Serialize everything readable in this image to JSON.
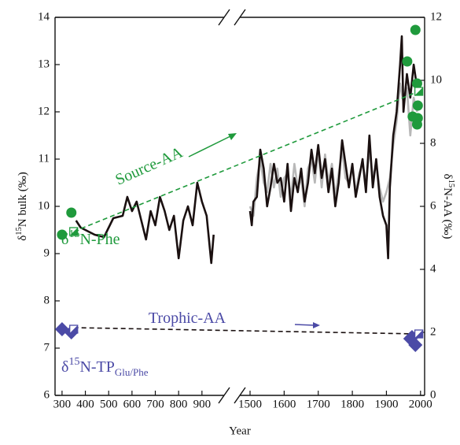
{
  "chart_data": {
    "type": "line",
    "x_label": "Year",
    "y_label": [
      "δ",
      "15",
      "N bulk (‰)"
    ],
    "y2_label": [
      "δ",
      "15",
      "N-AA (‰)"
    ],
    "x_segments": [
      {
        "xlim": [
          270,
          995
        ],
        "xticks": [
          300,
          400,
          500,
          600,
          700,
          800,
          900
        ]
      },
      {
        "xlim": [
          1470,
          2012
        ],
        "xticks": [
          1500,
          1600,
          1700,
          1800,
          1900,
          2000
        ]
      }
    ],
    "ylim": [
      6,
      14
    ],
    "yticks": [
      6,
      7,
      8,
      9,
      10,
      11,
      12,
      13,
      14
    ],
    "y2lim": [
      0,
      12
    ],
    "y2ticks": [
      0,
      2,
      4,
      6,
      8,
      10,
      12
    ],
    "annotations": [
      {
        "parts": [
          "Source-AA"
        ],
        "color": "#1f9a3c"
      },
      {
        "parts": [
          "δ",
          "15",
          "N-Phe"
        ],
        "color": "#1f9a3c"
      },
      {
        "parts": [
          "Trophic-AA"
        ],
        "color": "#4b4aa6"
      },
      {
        "parts": [
          "δ",
          "15",
          "N-TP",
          "Glu/Phe"
        ],
        "color": "#4b4aa6"
      }
    ],
    "series": [
      {
        "marker": "line",
        "color": "#1a1010",
        "x": [
          360,
          380,
          400,
          420,
          440,
          480,
          520,
          560,
          580,
          600,
          620,
          640,
          660,
          680,
          700,
          720,
          740,
          760,
          780,
          800,
          820,
          840,
          860,
          880,
          900,
          920,
          940,
          950
        ],
        "values": [
          9.7,
          9.55,
          9.5,
          9.45,
          9.4,
          9.35,
          9.75,
          9.8,
          10.2,
          9.9,
          10.1,
          9.7,
          9.3,
          9.9,
          9.6,
          10.2,
          9.9,
          9.5,
          9.8,
          8.9,
          9.7,
          10.0,
          9.6,
          10.5,
          10.1,
          9.8,
          8.8,
          9.4
        ]
      },
      {
        "marker": "line",
        "color": "#b8b8b8",
        "x": [
          1500,
          1510,
          1520,
          1530,
          1540,
          1550,
          1560,
          1570,
          1580,
          1590,
          1600,
          1610,
          1620,
          1630,
          1640,
          1650,
          1660,
          1670,
          1680,
          1690,
          1700,
          1710,
          1720,
          1730,
          1740,
          1750,
          1760,
          1770,
          1780,
          1790,
          1800,
          1810,
          1820,
          1830,
          1840,
          1850,
          1860,
          1870,
          1880,
          1890,
          1900,
          1910,
          1920,
          1930,
          1940,
          1950,
          1960,
          1970,
          1980,
          1990
        ],
        "values": [
          10.0,
          9.8,
          10.6,
          11.0,
          10.5,
          10.3,
          10.9,
          10.4,
          10.8,
          10.2,
          10.6,
          10.7,
          10.2,
          10.9,
          10.4,
          10.6,
          10.0,
          10.8,
          11.0,
          10.5,
          11.2,
          10.4,
          11.1,
          10.5,
          10.9,
          10.2,
          10.7,
          11.2,
          10.6,
          10.5,
          10.8,
          10.3,
          10.7,
          10.9,
          10.5,
          11.2,
          10.6,
          10.9,
          10.4,
          10.1,
          10.3,
          10.6,
          11.3,
          11.8,
          12.6,
          12.2,
          12.5,
          11.5,
          12.3,
          12.0
        ]
      },
      {
        "marker": "line",
        "color": "#1a1010",
        "x": [
          1500,
          1505,
          1510,
          1520,
          1530,
          1540,
          1550,
          1560,
          1570,
          1580,
          1590,
          1600,
          1610,
          1620,
          1630,
          1640,
          1650,
          1660,
          1670,
          1680,
          1690,
          1700,
          1710,
          1720,
          1730,
          1740,
          1750,
          1760,
          1770,
          1780,
          1790,
          1800,
          1810,
          1820,
          1830,
          1840,
          1850,
          1860,
          1870,
          1880,
          1890,
          1900,
          1905,
          1910,
          1920,
          1930,
          1940,
          1945,
          1950,
          1960,
          1970,
          1980,
          1990
        ],
        "values": [
          9.9,
          9.6,
          10.1,
          10.2,
          11.2,
          10.8,
          10.0,
          10.4,
          10.9,
          10.5,
          10.6,
          10.1,
          10.9,
          9.9,
          10.6,
          10.3,
          10.8,
          10.1,
          10.5,
          11.2,
          10.7,
          11.3,
          10.6,
          11.0,
          10.3,
          10.8,
          10.0,
          10.5,
          11.4,
          10.9,
          10.4,
          10.9,
          10.2,
          10.6,
          11.0,
          10.3,
          11.5,
          10.4,
          11.0,
          10.2,
          9.8,
          9.6,
          8.9,
          10.4,
          11.5,
          12.0,
          13.0,
          13.6,
          12.0,
          12.8,
          12.3,
          13.0,
          12.5
        ]
      },
      {
        "marker": "dashed",
        "axis": "y2",
        "color": "#1f9a3c",
        "x": [
          350,
          1995
        ],
        "values": [
          5.2,
          9.65
        ]
      },
      {
        "marker": "dashed",
        "axis": "y2",
        "color": "#1a1010",
        "x": [
          350,
          1995
        ],
        "values": [
          2.15,
          1.95
        ]
      },
      {
        "marker": "circle",
        "axis": "y2",
        "color": "#1f9a3c",
        "x": [
          300,
          340,
          1985,
          1961,
          1990,
          1992,
          1977,
          1992,
          1990
        ],
        "values": [
          5.1,
          5.8,
          11.6,
          10.6,
          9.9,
          9.2,
          8.85,
          8.8,
          8.6
        ]
      },
      {
        "marker": "square",
        "axis": "y2",
        "color": "#1f9a3c",
        "x": [
          350,
          1995
        ],
        "values": [
          5.2,
          9.65
        ]
      },
      {
        "marker": "diamond",
        "axis": "y2",
        "color": "#4b4aa6",
        "x": [
          300,
          340,
          1970,
          1975,
          1985
        ],
        "values": [
          2.1,
          2.0,
          1.8,
          1.85,
          1.6
        ]
      },
      {
        "marker": "square",
        "axis": "y2",
        "color": "#4b4aa6",
        "x": [
          350,
          1995
        ],
        "values": [
          2.1,
          1.95
        ]
      }
    ]
  }
}
